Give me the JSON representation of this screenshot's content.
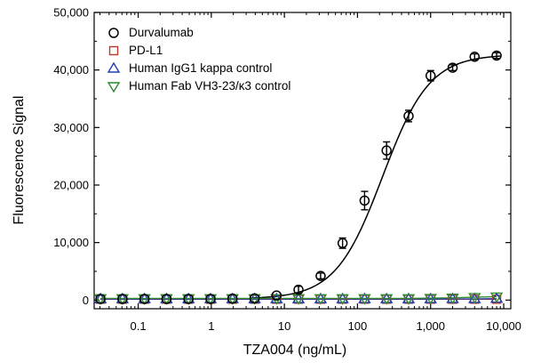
{
  "chart_data": {
    "type": "scatter",
    "title": "",
    "xlabel": "TZA004 (ng/mL)",
    "ylabel": "Fluorescence Signal",
    "xscale": "log",
    "xlim": [
      0.025,
      12500
    ],
    "ylim": [
      -1500,
      50000
    ],
    "x_tick_labels": [
      {
        "value": 0.1,
        "label": "0.1"
      },
      {
        "value": 1,
        "label": "1"
      },
      {
        "value": 10,
        "label": "10"
      },
      {
        "value": 100,
        "label": "100"
      },
      {
        "value": 1000,
        "label": "1,000"
      },
      {
        "value": 10000,
        "label": "10,000"
      }
    ],
    "y_tick_labels": [
      {
        "value": 0,
        "label": "0"
      },
      {
        "value": 10000,
        "label": "10,000"
      },
      {
        "value": 20000,
        "label": "20,000"
      },
      {
        "value": 30000,
        "label": "30,000"
      },
      {
        "value": 40000,
        "label": "40,000"
      },
      {
        "value": 50000,
        "label": "50,000"
      }
    ],
    "legend_position": "top-left",
    "x": [
      0.0305,
      0.061,
      0.122,
      0.244,
      0.488,
      0.977,
      1.95,
      3.91,
      7.81,
      15.6,
      31.3,
      62.5,
      125,
      250,
      500,
      1000,
      2000,
      4000,
      8000
    ],
    "series": [
      {
        "name": "Durvalumab",
        "marker": "circle",
        "color": "#000000",
        "values": [
          200,
          200,
          200,
          200,
          200,
          200,
          250,
          300,
          800,
          1800,
          4200,
          9900,
          17300,
          26000,
          32000,
          39000,
          40400,
          42300,
          42500
        ],
        "errors": [
          80,
          80,
          80,
          80,
          80,
          80,
          100,
          150,
          300,
          600,
          500,
          900,
          1600,
          1500,
          1000,
          900,
          500,
          500,
          500
        ]
      },
      {
        "name": "PD-L1",
        "marker": "square",
        "color": "#c0392b",
        "values": [
          150,
          150,
          150,
          150,
          150,
          150,
          150,
          150,
          150,
          150,
          150,
          150,
          150,
          150,
          150,
          150,
          150,
          150,
          150
        ]
      },
      {
        "name": "Human IgG1 kappa control",
        "marker": "triangle-up",
        "color": "#1f3fb0",
        "values": [
          180,
          180,
          180,
          180,
          180,
          180,
          180,
          180,
          180,
          180,
          180,
          180,
          180,
          180,
          180,
          180,
          200,
          200,
          250
        ]
      },
      {
        "name": "Human Fab VH3-23/κ3 control",
        "marker": "triangle-down",
        "color": "#2e8b2e",
        "values": [
          300,
          300,
          300,
          300,
          300,
          300,
          300,
          300,
          300,
          300,
          300,
          300,
          300,
          300,
          300,
          350,
          400,
          500,
          600
        ]
      }
    ],
    "fit_curve": {
      "series": "Durvalumab",
      "model": "4PL",
      "bottom": 200,
      "top": 42700,
      "ec50": 220,
      "hill": 1.35
    }
  }
}
